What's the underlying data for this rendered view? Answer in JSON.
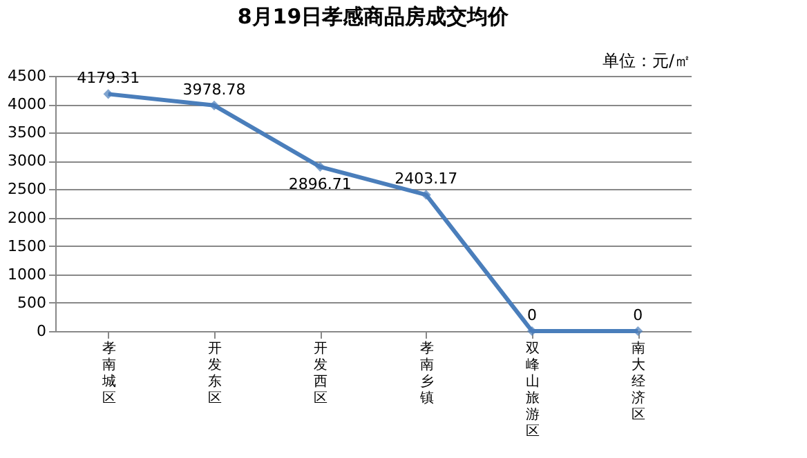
{
  "chart_data": {
    "type": "line",
    "title": "8月19日孝感商品房成交均价",
    "annotations": [
      "单位：元/㎡"
    ],
    "categories": [
      "孝南城区",
      "开发东区",
      "开发西区",
      "孝南乡镇",
      "双峰山旅游区",
      "南大经济区"
    ],
    "series": [
      {
        "color": "#4a7ebb",
        "values": [
          4179.31,
          3978.78,
          2896.71,
          2403.17,
          0,
          0
        ]
      }
    ],
    "ylim": [
      0,
      4500
    ],
    "yticks": [
      0,
      500,
      1000,
      1500,
      2000,
      2500,
      3000,
      3500,
      4000,
      4500
    ],
    "grid": "y",
    "marker": "diamond",
    "line_style": "solid",
    "data_labels": true,
    "legend": false
  }
}
